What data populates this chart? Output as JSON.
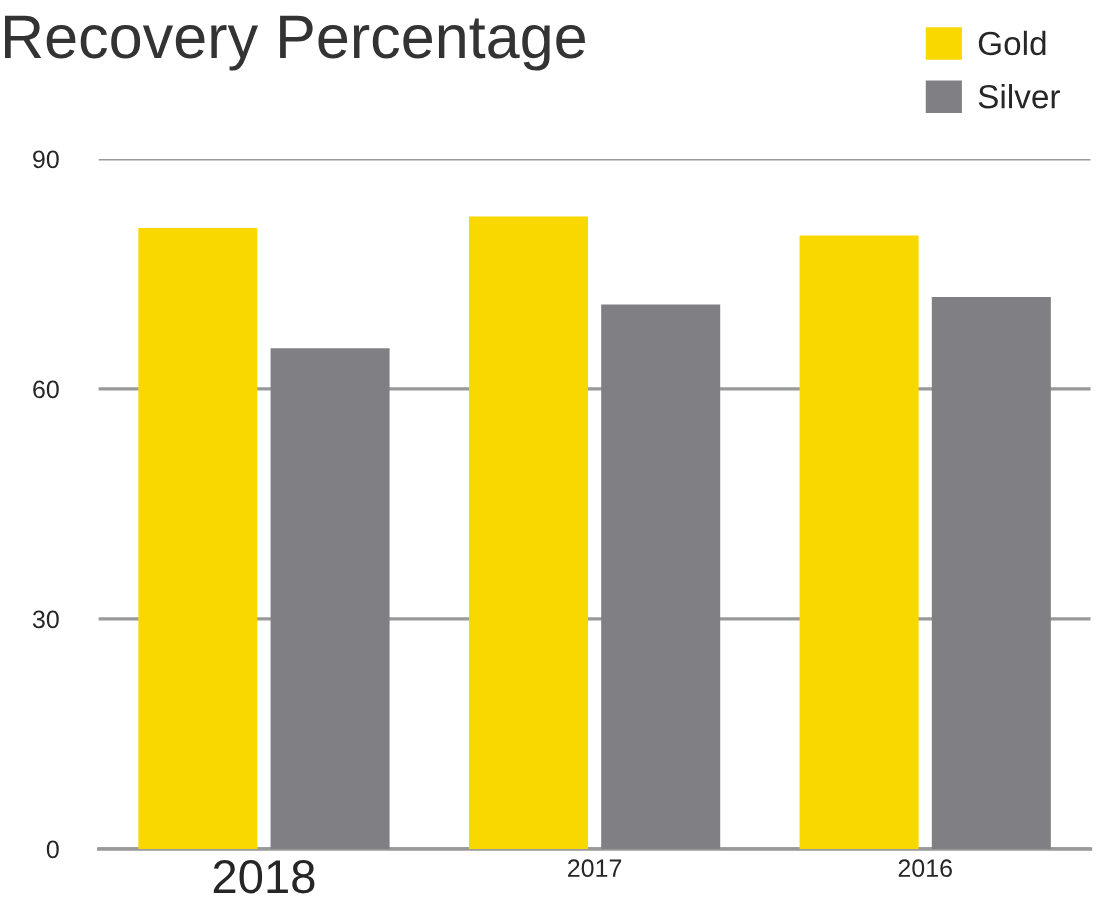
{
  "chart_data": {
    "type": "bar",
    "title": "Recovery Percentage",
    "categories": [
      "2018",
      "2017",
      "2016"
    ],
    "series": [
      {
        "name": "Gold",
        "color": "#f9d800",
        "values": [
          81,
          82.5,
          80
        ]
      },
      {
        "name": "Silver",
        "color": "#808084",
        "values": [
          65.3,
          71,
          72
        ]
      }
    ],
    "ylim": [
      0,
      90
    ],
    "yticks": [
      0,
      30,
      60,
      90
    ],
    "grid": "y",
    "legend": "top right"
  }
}
